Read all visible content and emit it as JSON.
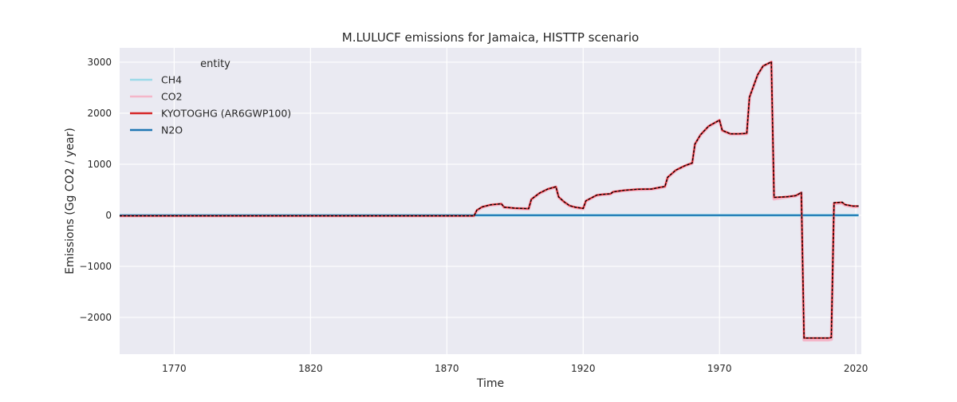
{
  "chart_data": {
    "type": "line",
    "title": "M.LULUCF emissions for Jamaica, HISTTP scenario",
    "xlabel": "Time",
    "ylabel": "Emissions (Gg CO2 / year)",
    "xlim": [
      1750,
      2022
    ],
    "ylim": [
      -2720,
      3280
    ],
    "x_ticks": [
      1770,
      1820,
      1870,
      1920,
      1970,
      2020
    ],
    "y_ticks": [
      -2000,
      -1000,
      0,
      1000,
      2000,
      3000
    ],
    "y_tick_labels": [
      "−2000",
      "−1000",
      "0",
      "1000",
      "2000",
      "3000"
    ],
    "grid": true,
    "legend_title": "entity",
    "legend_position": "top-left",
    "series": [
      {
        "name": "CH4",
        "color": "#9bd9e8",
        "points": [
          [
            1750,
            0
          ],
          [
            1880,
            0
          ],
          [
            1881,
            0
          ],
          [
            1890,
            0
          ],
          [
            1891,
            0
          ],
          [
            2021,
            0
          ]
        ]
      },
      {
        "name": "CO2",
        "color": "#f4b6c9",
        "points": [
          [
            1750,
            -10
          ],
          [
            1880,
            -10
          ],
          [
            1881,
            90
          ],
          [
            1883,
            160
          ],
          [
            1886,
            200
          ],
          [
            1889,
            215
          ],
          [
            1890,
            220
          ],
          [
            1891,
            155
          ],
          [
            1895,
            135
          ],
          [
            1900,
            125
          ],
          [
            1901,
            310
          ],
          [
            1904,
            430
          ],
          [
            1907,
            510
          ],
          [
            1910,
            555
          ],
          [
            1911,
            355
          ],
          [
            1913,
            260
          ],
          [
            1915,
            185
          ],
          [
            1917,
            155
          ],
          [
            1920,
            130
          ],
          [
            1921,
            280
          ],
          [
            1925,
            390
          ],
          [
            1927,
            405
          ],
          [
            1930,
            415
          ],
          [
            1931,
            455
          ],
          [
            1935,
            485
          ],
          [
            1940,
            505
          ],
          [
            1945,
            510
          ],
          [
            1948,
            540
          ],
          [
            1950,
            560
          ],
          [
            1951,
            740
          ],
          [
            1954,
            880
          ],
          [
            1957,
            960
          ],
          [
            1959,
            1000
          ],
          [
            1960,
            1020
          ],
          [
            1961,
            1390
          ],
          [
            1963,
            1570
          ],
          [
            1966,
            1740
          ],
          [
            1968,
            1800
          ],
          [
            1970,
            1860
          ],
          [
            1971,
            1660
          ],
          [
            1974,
            1590
          ],
          [
            1977,
            1590
          ],
          [
            1980,
            1600
          ],
          [
            1981,
            2310
          ],
          [
            1984,
            2750
          ],
          [
            1986,
            2920
          ],
          [
            1989,
            3000
          ],
          [
            1990,
            320
          ],
          [
            1995,
            360
          ],
          [
            1998,
            380
          ],
          [
            2000,
            440
          ],
          [
            2001,
            -2440
          ],
          [
            2010,
            -2440
          ],
          [
            2011,
            -2430
          ],
          [
            2012,
            230
          ],
          [
            2015,
            240
          ],
          [
            2016,
            200
          ],
          [
            2019,
            170
          ],
          [
            2021,
            170
          ]
        ]
      },
      {
        "name": "KYOTOGHG (AR6GWP100)",
        "color": "#d62728",
        "points": [
          [
            1750,
            -10
          ],
          [
            1880,
            -10
          ],
          [
            1881,
            100
          ],
          [
            1883,
            165
          ],
          [
            1886,
            205
          ],
          [
            1889,
            220
          ],
          [
            1890,
            225
          ],
          [
            1891,
            160
          ],
          [
            1895,
            140
          ],
          [
            1900,
            130
          ],
          [
            1901,
            315
          ],
          [
            1904,
            435
          ],
          [
            1907,
            515
          ],
          [
            1910,
            560
          ],
          [
            1911,
            360
          ],
          [
            1913,
            265
          ],
          [
            1915,
            190
          ],
          [
            1917,
            160
          ],
          [
            1920,
            135
          ],
          [
            1921,
            285
          ],
          [
            1925,
            395
          ],
          [
            1927,
            410
          ],
          [
            1930,
            420
          ],
          [
            1931,
            460
          ],
          [
            1935,
            490
          ],
          [
            1940,
            510
          ],
          [
            1945,
            515
          ],
          [
            1948,
            545
          ],
          [
            1950,
            565
          ],
          [
            1951,
            745
          ],
          [
            1954,
            885
          ],
          [
            1957,
            965
          ],
          [
            1959,
            1005
          ],
          [
            1960,
            1025
          ],
          [
            1961,
            1395
          ],
          [
            1963,
            1575
          ],
          [
            1966,
            1745
          ],
          [
            1968,
            1805
          ],
          [
            1970,
            1865
          ],
          [
            1971,
            1665
          ],
          [
            1974,
            1595
          ],
          [
            1977,
            1595
          ],
          [
            1980,
            1605
          ],
          [
            1981,
            2315
          ],
          [
            1984,
            2755
          ],
          [
            1986,
            2925
          ],
          [
            1989,
            3005
          ],
          [
            1990,
            350
          ],
          [
            1995,
            365
          ],
          [
            1998,
            385
          ],
          [
            2000,
            445
          ],
          [
            2001,
            -2405
          ],
          [
            2010,
            -2405
          ],
          [
            2011,
            -2395
          ],
          [
            2012,
            245
          ],
          [
            2015,
            255
          ],
          [
            2016,
            210
          ],
          [
            2019,
            180
          ],
          [
            2021,
            180
          ]
        ]
      },
      {
        "name": "N2O",
        "color": "#1f77b4",
        "points": [
          [
            1750,
            0
          ],
          [
            2021,
            0
          ]
        ]
      }
    ]
  }
}
